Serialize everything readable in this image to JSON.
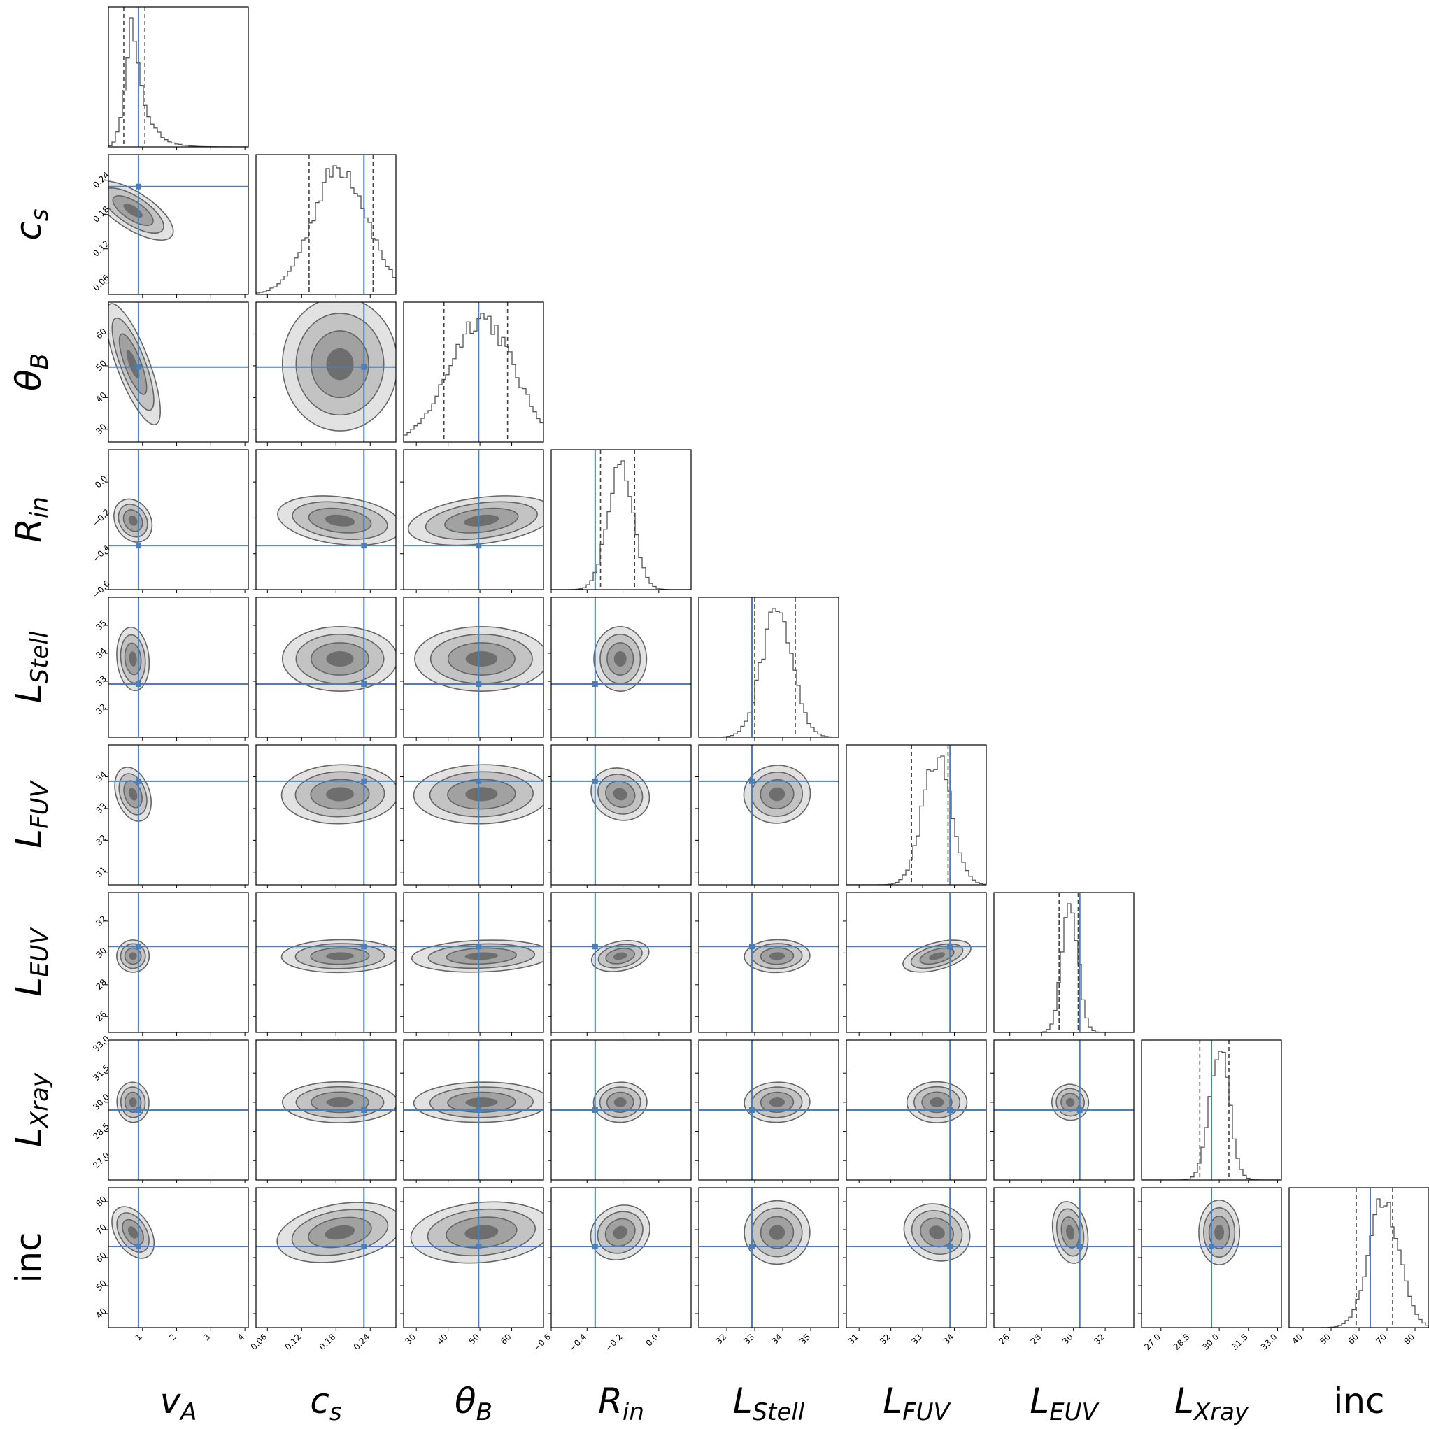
{
  "chart_data": {
    "type": "corner",
    "parameters": [
      {
        "key": "vA",
        "label": "v",
        "sub": "A",
        "italic": true,
        "range": [
          0,
          4.1
        ],
        "ticks": [
          1,
          2,
          3,
          4
        ],
        "tick_labels": [
          "1",
          "2",
          "3",
          "4"
        ],
        "truth": 0.88,
        "quantiles": [
          0.45,
          1.07
        ],
        "mode": 0.72,
        "spread": 0.22
      },
      {
        "key": "cs",
        "label": "c",
        "sub": "s",
        "italic": true,
        "range": [
          0.04,
          0.285
        ],
        "ticks": [
          0.06,
          0.12,
          0.18,
          0.24
        ],
        "tick_labels": [
          "0.06",
          "0.12",
          "0.18",
          "0.24"
        ],
        "truth": 0.229,
        "quantiles": [
          0.133,
          0.245
        ],
        "mode": 0.187,
        "spread": 0.048
      },
      {
        "key": "thetaB",
        "label": "θ",
        "sub": "B",
        "italic": true,
        "range": [
          26,
          70
        ],
        "ticks": [
          30,
          40,
          50,
          60
        ],
        "tick_labels": [
          "30",
          "40",
          "50",
          "60"
        ],
        "truth": 49.6,
        "quantiles": [
          38.7,
          58.7
        ],
        "mode": 50.5,
        "spread": 10.0
      },
      {
        "key": "Rin",
        "label": "R",
        "sub": "in",
        "italic": true,
        "range": [
          -0.6,
          0.18
        ],
        "ticks": [
          -0.6,
          -0.4,
          -0.2,
          0.0
        ],
        "tick_labels": [
          "−0.6",
          "−0.4",
          "−0.2",
          "0.0"
        ],
        "truth": -0.355,
        "quantiles": [
          -0.325,
          -0.135
        ],
        "mode": -0.215,
        "spread": 0.07
      },
      {
        "key": "LStell",
        "label": "L",
        "sub": "Stell",
        "italic": true,
        "range": [
          31,
          36
        ],
        "ticks": [
          32,
          33,
          34,
          35
        ],
        "tick_labels": [
          "32",
          "33",
          "34",
          "35"
        ],
        "truth": 32.9,
        "quantiles": [
          33.0,
          34.45
        ],
        "mode": 33.8,
        "spread": 0.55
      },
      {
        "key": "LFUV",
        "label": "L",
        "sub": "FUV",
        "italic": true,
        "range": [
          30.6,
          35.0
        ],
        "ticks": [
          31,
          32,
          33,
          34
        ],
        "tick_labels": [
          "31",
          "32",
          "33",
          "34"
        ],
        "truth": 33.86,
        "quantiles": [
          32.65,
          33.8
        ],
        "mode": 33.45,
        "spread": 0.45
      },
      {
        "key": "LEUV",
        "label": "L",
        "sub": "EUV",
        "italic": true,
        "range": [
          25,
          33.8
        ],
        "ticks": [
          26,
          28,
          30,
          32
        ],
        "tick_labels": [
          "26",
          "28",
          "30",
          "32"
        ],
        "truth": 30.4,
        "quantiles": [
          29.1,
          30.3
        ],
        "mode": 29.8,
        "spread": 0.5
      },
      {
        "key": "LXray",
        "label": "L",
        "sub": "Xray",
        "italic": true,
        "range": [
          26,
          33.2
        ],
        "ticks": [
          27.0,
          28.5,
          30.0,
          31.5,
          33.0
        ],
        "tick_labels": [
          "27.0",
          "28.5",
          "30.0",
          "31.5",
          "33.0"
        ],
        "truth": 29.6,
        "quantiles": [
          29.0,
          30.5
        ],
        "mode": 30.0,
        "spread": 0.5
      },
      {
        "key": "inc",
        "label": "inc",
        "sub": "",
        "italic": false,
        "range": [
          35,
          85
        ],
        "ticks": [
          40,
          50,
          60,
          70,
          80
        ],
        "tick_labels": [
          "40",
          "50",
          "60",
          "70",
          "80"
        ],
        "truth": 64.0,
        "quantiles": [
          59.0,
          72.0
        ],
        "mode": 69.0,
        "spread": 5.5
      }
    ],
    "correlations": {
      "vA|cs": 0.55,
      "vA|thetaB": 0.1,
      "vA|Rin": 0.4,
      "vA|LStell": 0.05,
      "vA|LFUV": 0.2,
      "vA|LEUV": 0.1,
      "vA|LXray": 0.05,
      "vA|inc": 0.35,
      "cs|thetaB": 0.0,
      "cs|Rin": -0.3,
      "cs|LStell": 0.0,
      "cs|LFUV": 0.05,
      "cs|LEUV": 0.05,
      "cs|LXray": 0.0,
      "cs|inc": 0.35,
      "thetaB|Rin": 0.35,
      "thetaB|LStell": 0.0,
      "thetaB|LFUV": 0.05,
      "thetaB|LEUV": 0.15,
      "thetaB|LXray": 0.05,
      "thetaB|inc": 0.2,
      "Rin|LStell": 0.0,
      "Rin|LFUV": -0.45,
      "Rin|LEUV": 0.35,
      "Rin|LXray": 0.05,
      "Rin|inc": 0.55,
      "LStell|LFUV": 0.1,
      "LStell|LEUV": 0.05,
      "LStell|LXray": 0.05,
      "LStell|inc": 0.05,
      "LFUV|LEUV": 0.55,
      "LFUV|LXray": 0.0,
      "LFUV|inc": -0.4,
      "LEUV|LXray": -0.35,
      "LEUV|inc": 0.1,
      "LXray|inc": 0.0
    },
    "truth_color": "#4a7fba",
    "contour_colors": [
      "#e2e2e2",
      "#c3c3c3",
      "#a1a1a1",
      "#6e6e6e"
    ],
    "contour_line_color": "#666666",
    "hist_color": "#555555",
    "quantile_line_style": "dashed"
  }
}
